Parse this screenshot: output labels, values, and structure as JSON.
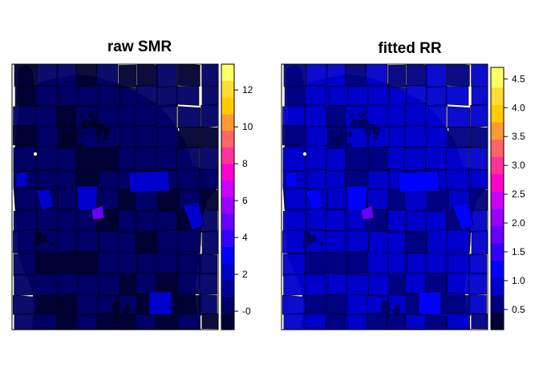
{
  "chart_data": [
    {
      "type": "choropleth",
      "title": "raw SMR",
      "legend": {
        "position": "right",
        "ticks": [
          "-0",
          "2",
          "4",
          "6",
          "8",
          "10",
          "12"
        ],
        "tick_values": [
          0,
          2,
          4,
          6,
          8,
          10,
          12
        ],
        "range": [
          -1,
          13.4
        ],
        "breaks": [
          -1,
          -0.1,
          0.8,
          1.7,
          2.6,
          3.5,
          4.4,
          5.3,
          6.2,
          7.1,
          8.0,
          8.9,
          9.8,
          10.7,
          11.6,
          12.5,
          13.4
        ],
        "colors": [
          "#000033",
          "#000066",
          "#000099",
          "#0000CC",
          "#0000FF",
          "#3300FF",
          "#6600FF",
          "#9900FF",
          "#CC00FF",
          "#FF00CC",
          "#FF3399",
          "#FF6666",
          "#FF9933",
          "#FFCC00",
          "#FFDD33",
          "#FFFF66"
        ]
      },
      "regions_fill_level": {
        "typical": 1,
        "darkest": 0,
        "bright_blue": 3,
        "purple_center": 6
      }
    },
    {
      "type": "choropleth",
      "title": "fitted RR",
      "legend": {
        "position": "right",
        "ticks": [
          "0.5",
          "1.0",
          "1.5",
          "2.0",
          "2.5",
          "3.0",
          "3.5",
          "4.0",
          "4.5"
        ],
        "tick_values": [
          0.5,
          1.0,
          1.5,
          2.0,
          2.5,
          3.0,
          3.5,
          4.0,
          4.5
        ],
        "range": [
          0.15,
          4.7
        ],
        "breaks": [
          0.15,
          0.45,
          0.75,
          1.05,
          1.35,
          1.65,
          1.95,
          2.25,
          2.55,
          2.85,
          3.15,
          3.45,
          3.75,
          4.05,
          4.35,
          4.7
        ],
        "colors": [
          "#000033",
          "#000080",
          "#0000CC",
          "#0000FF",
          "#3300FF",
          "#6600FF",
          "#9900FF",
          "#CC00FF",
          "#FF00CC",
          "#FF3399",
          "#FF6666",
          "#FF9933",
          "#FFCC00",
          "#FFDD33",
          "#FFFF66"
        ]
      },
      "regions_fill_level": {
        "typical": 2,
        "darkest": 1,
        "bright_blue": 3,
        "purple_center": 5
      }
    }
  ]
}
